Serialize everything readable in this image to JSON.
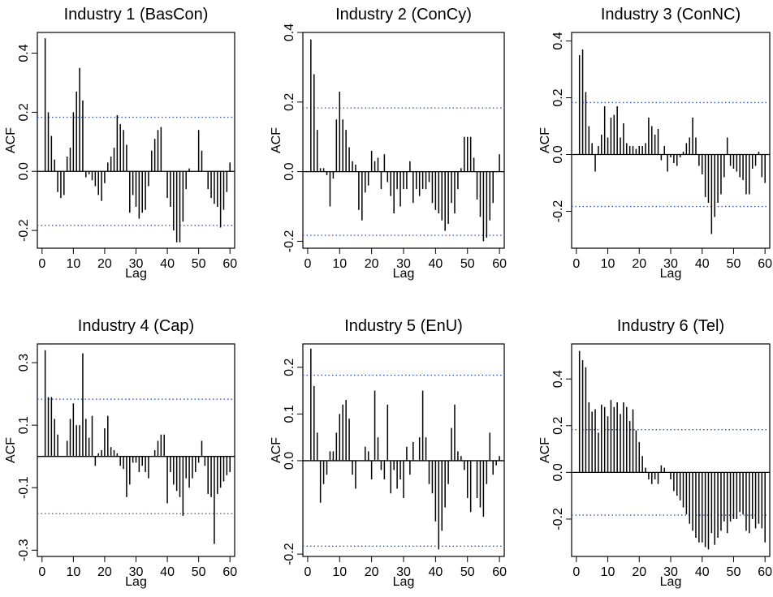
{
  "chart_data": [
    {
      "type": "bar",
      "title": "Industry 1 (BasCon)",
      "xlabel": "Lag",
      "ylabel": "ACF",
      "ylim": [
        -0.26,
        0.47
      ],
      "xlim": [
        -1.5,
        61.5
      ],
      "yticks": [
        -0.2,
        0.0,
        0.2,
        0.4
      ],
      "ytick_labels": [
        "-0.2",
        "0.0",
        "0.2",
        "0.4"
      ],
      "xticks": [
        0,
        10,
        20,
        30,
        40,
        50,
        60
      ],
      "xtick_labels": [
        "0",
        "10",
        "20",
        "30",
        "40",
        "50",
        "60"
      ],
      "ci": 0.183,
      "grid": false,
      "lags": [
        1,
        2,
        3,
        4,
        5,
        6,
        7,
        8,
        9,
        10,
        11,
        12,
        13,
        14,
        15,
        16,
        17,
        18,
        19,
        20,
        21,
        22,
        23,
        24,
        25,
        26,
        27,
        28,
        29,
        30,
        31,
        32,
        33,
        34,
        35,
        36,
        37,
        38,
        39,
        40,
        41,
        42,
        43,
        44,
        45,
        46,
        47,
        48,
        49,
        50,
        51,
        52,
        53,
        54,
        55,
        56,
        57,
        58,
        59,
        60
      ],
      "values": [
        0.45,
        0.2,
        0.12,
        0.04,
        -0.07,
        -0.09,
        -0.08,
        0.05,
        0.08,
        0.2,
        0.27,
        0.35,
        0.24,
        -0.02,
        -0.01,
        -0.03,
        -0.05,
        -0.08,
        -0.1,
        -0.04,
        0.03,
        0.05,
        0.08,
        0.19,
        0.16,
        0.14,
        0.09,
        -0.14,
        -0.08,
        -0.12,
        -0.16,
        -0.14,
        -0.13,
        -0.05,
        0.07,
        0.11,
        0.14,
        0.15,
        0.0,
        -0.09,
        -0.12,
        -0.2,
        -0.24,
        -0.24,
        -0.17,
        -0.06,
        0.01,
        0.0,
        0.0,
        0.14,
        0.07,
        0.0,
        -0.06,
        -0.09,
        -0.11,
        -0.12,
        -0.19,
        -0.13,
        -0.07,
        0.03
      ]
    },
    {
      "type": "bar",
      "title": "Industry 2 (ConCy)",
      "xlabel": "Lag",
      "ylabel": "ACF",
      "ylim": [
        -0.22,
        0.4
      ],
      "xlim": [
        -1.5,
        61.5
      ],
      "yticks": [
        -0.2,
        0.0,
        0.2,
        0.4
      ],
      "ytick_labels": [
        "-0.2",
        "0.0",
        "0.2",
        "0.4"
      ],
      "xticks": [
        0,
        10,
        20,
        30,
        40,
        50,
        60
      ],
      "xtick_labels": [
        "0",
        "10",
        "20",
        "30",
        "40",
        "50",
        "60"
      ],
      "ci": 0.183,
      "grid": false,
      "lags": [
        1,
        2,
        3,
        4,
        5,
        6,
        7,
        8,
        9,
        10,
        11,
        12,
        13,
        14,
        15,
        16,
        17,
        18,
        19,
        20,
        21,
        22,
        23,
        24,
        25,
        26,
        27,
        28,
        29,
        30,
        31,
        32,
        33,
        34,
        35,
        36,
        37,
        38,
        39,
        40,
        41,
        42,
        43,
        44,
        45,
        46,
        47,
        48,
        49,
        50,
        51,
        52,
        53,
        54,
        55,
        56,
        57,
        58,
        59,
        60
      ],
      "values": [
        0.38,
        0.28,
        0.12,
        0.01,
        0.01,
        -0.01,
        -0.1,
        -0.02,
        0.15,
        0.23,
        0.15,
        0.12,
        0.07,
        0.03,
        0.02,
        -0.11,
        -0.14,
        -0.06,
        -0.04,
        0.06,
        0.03,
        0.04,
        -0.05,
        0.05,
        -0.03,
        -0.07,
        -0.12,
        -0.05,
        -0.1,
        -0.05,
        -0.05,
        0.03,
        -0.09,
        -0.05,
        -0.07,
        -0.05,
        -0.05,
        -0.03,
        -0.09,
        -0.11,
        -0.12,
        -0.14,
        -0.17,
        -0.15,
        -0.09,
        -0.12,
        -0.05,
        0.01,
        0.1,
        0.1,
        0.1,
        0.04,
        -0.08,
        -0.13,
        -0.2,
        -0.19,
        -0.14,
        -0.09,
        0.0,
        0.05
      ]
    },
    {
      "type": "bar",
      "title": "Industry 3 (ConNC)",
      "xlabel": "Lag",
      "ylabel": "ACF",
      "ylim": [
        -0.33,
        0.43
      ],
      "xlim": [
        -1.5,
        61.5
      ],
      "yticks": [
        -0.2,
        0.0,
        0.2,
        0.4
      ],
      "ytick_labels": [
        "-0.2",
        "0.0",
        "0.2",
        "0.4"
      ],
      "xticks": [
        0,
        10,
        20,
        30,
        40,
        50,
        60
      ],
      "xtick_labels": [
        "0",
        "10",
        "20",
        "30",
        "40",
        "50",
        "60"
      ],
      "ci": 0.183,
      "grid": false,
      "lags": [
        1,
        2,
        3,
        4,
        5,
        6,
        7,
        8,
        9,
        10,
        11,
        12,
        13,
        14,
        15,
        16,
        17,
        18,
        19,
        20,
        21,
        22,
        23,
        24,
        25,
        26,
        27,
        28,
        29,
        30,
        31,
        32,
        33,
        34,
        35,
        36,
        37,
        38,
        39,
        40,
        41,
        42,
        43,
        44,
        45,
        46,
        47,
        48,
        49,
        50,
        51,
        52,
        53,
        54,
        55,
        56,
        57,
        58,
        59,
        60
      ],
      "values": [
        0.35,
        0.37,
        0.22,
        0.1,
        0.04,
        -0.06,
        0.03,
        0.07,
        0.17,
        0.06,
        0.13,
        0.14,
        0.17,
        0.06,
        0.11,
        0.04,
        0.03,
        0.03,
        0.02,
        0.03,
        0.03,
        0.04,
        0.13,
        0.1,
        0.07,
        0.09,
        -0.02,
        0.03,
        -0.06,
        -0.01,
        -0.03,
        -0.04,
        -0.01,
        0.01,
        0.04,
        0.06,
        0.13,
        0.06,
        -0.04,
        -0.07,
        -0.15,
        -0.17,
        -0.28,
        -0.22,
        -0.17,
        -0.14,
        -0.08,
        0.06,
        -0.04,
        -0.05,
        -0.06,
        -0.08,
        -0.09,
        -0.14,
        -0.14,
        -0.05,
        -0.04,
        0.01,
        -0.08,
        -0.1
      ]
    },
    {
      "type": "bar",
      "title": "Industry 4 (Cap)",
      "xlabel": "Lag",
      "ylabel": "ACF",
      "ylim": [
        -0.32,
        0.36
      ],
      "xlim": [
        -1.5,
        61.5
      ],
      "yticks": [
        -0.3,
        -0.1,
        0.1,
        0.3
      ],
      "ytick_labels": [
        "-0.3",
        "-0.1",
        "0.1",
        "0.3"
      ],
      "xticks": [
        0,
        10,
        20,
        30,
        40,
        50,
        60
      ],
      "xtick_labels": [
        "0",
        "10",
        "20",
        "30",
        "40",
        "50",
        "60"
      ],
      "ci": 0.183,
      "grid": false,
      "lags": [
        1,
        2,
        3,
        4,
        5,
        6,
        7,
        8,
        9,
        10,
        11,
        12,
        13,
        14,
        15,
        16,
        17,
        18,
        19,
        20,
        21,
        22,
        23,
        24,
        25,
        26,
        27,
        28,
        29,
        30,
        31,
        32,
        33,
        34,
        35,
        36,
        37,
        38,
        39,
        40,
        41,
        42,
        43,
        44,
        45,
        46,
        47,
        48,
        49,
        50,
        51,
        52,
        53,
        54,
        55,
        56,
        57,
        58,
        59,
        60
      ],
      "values": [
        0.34,
        0.19,
        0.19,
        0.12,
        0.07,
        0.0,
        0.0,
        0.05,
        0.12,
        0.17,
        0.1,
        0.1,
        0.33,
        0.12,
        0.06,
        0.13,
        -0.03,
        0.01,
        0.02,
        0.09,
        0.13,
        0.03,
        0.02,
        0.01,
        -0.03,
        -0.04,
        -0.13,
        -0.09,
        -0.02,
        -0.02,
        -0.05,
        -0.03,
        -0.05,
        -0.07,
        0.0,
        0.02,
        0.05,
        0.07,
        0.07,
        -0.15,
        -0.05,
        -0.09,
        -0.11,
        -0.13,
        -0.19,
        -0.07,
        -0.1,
        -0.07,
        -0.05,
        -0.02,
        0.05,
        -0.03,
        -0.12,
        -0.13,
        -0.28,
        -0.12,
        -0.1,
        -0.08,
        -0.06,
        -0.05
      ]
    },
    {
      "type": "bar",
      "title": "Industry 5 (EnU)",
      "xlabel": "Lag",
      "ylabel": "ACF",
      "ylim": [
        -0.205,
        0.25
      ],
      "xlim": [
        -1.5,
        61.5
      ],
      "yticks": [
        -0.2,
        0.0,
        0.1,
        0.2
      ],
      "ytick_labels": [
        "-0.2",
        "0.0",
        "0.1",
        "0.2"
      ],
      "xticks": [
        0,
        10,
        20,
        30,
        40,
        50,
        60
      ],
      "xtick_labels": [
        "0",
        "10",
        "20",
        "30",
        "40",
        "50",
        "60"
      ],
      "ci": 0.183,
      "grid": false,
      "lags": [
        1,
        2,
        3,
        4,
        5,
        6,
        7,
        8,
        9,
        10,
        11,
        12,
        13,
        14,
        15,
        16,
        17,
        18,
        19,
        20,
        21,
        22,
        23,
        24,
        25,
        26,
        27,
        28,
        29,
        30,
        31,
        32,
        33,
        34,
        35,
        36,
        37,
        38,
        39,
        40,
        41,
        42,
        43,
        44,
        45,
        46,
        47,
        48,
        49,
        50,
        51,
        52,
        53,
        54,
        55,
        56,
        57,
        58,
        59,
        60
      ],
      "values": [
        0.24,
        0.16,
        0.06,
        -0.09,
        -0.05,
        -0.03,
        0.02,
        0.02,
        0.06,
        0.1,
        0.12,
        0.13,
        0.09,
        -0.03,
        -0.06,
        0.0,
        0.0,
        0.03,
        0.02,
        -0.04,
        0.15,
        0.05,
        -0.02,
        -0.04,
        0.12,
        -0.07,
        -0.02,
        -0.06,
        -0.04,
        -0.08,
        0.03,
        -0.03,
        0.04,
        0.0,
        0.05,
        0.15,
        0.05,
        -0.05,
        -0.07,
        -0.13,
        -0.19,
        -0.15,
        -0.1,
        -0.05,
        0.07,
        0.12,
        0.02,
        0.01,
        -0.02,
        -0.08,
        -0.11,
        0.0,
        -0.08,
        -0.1,
        -0.12,
        -0.05,
        0.06,
        -0.03,
        -0.01,
        0.01
      ]
    },
    {
      "type": "bar",
      "title": "Industry 6 (Tel)",
      "xlabel": "Lag",
      "ylabel": "ACF",
      "ylim": [
        -0.36,
        0.55
      ],
      "xlim": [
        -1.5,
        61.5
      ],
      "yticks": [
        -0.2,
        0.0,
        0.2,
        0.4
      ],
      "ytick_labels": [
        "-0.2",
        "0.0",
        "0.2",
        "0.4"
      ],
      "xticks": [
        0,
        10,
        20,
        30,
        40,
        50,
        60
      ],
      "xtick_labels": [
        "0",
        "10",
        "20",
        "30",
        "40",
        "50",
        "60"
      ],
      "ci": 0.183,
      "grid": false,
      "lags": [
        1,
        2,
        3,
        4,
        5,
        6,
        7,
        8,
        9,
        10,
        11,
        12,
        13,
        14,
        15,
        16,
        17,
        18,
        19,
        20,
        21,
        22,
        23,
        24,
        25,
        26,
        27,
        28,
        29,
        30,
        31,
        32,
        33,
        34,
        35,
        36,
        37,
        38,
        39,
        40,
        41,
        42,
        43,
        44,
        45,
        46,
        47,
        48,
        49,
        50,
        51,
        52,
        53,
        54,
        55,
        56,
        57,
        58,
        59,
        60
      ],
      "values": [
        0.52,
        0.48,
        0.45,
        0.3,
        0.26,
        0.27,
        0.17,
        0.29,
        0.28,
        0.24,
        0.31,
        0.28,
        0.3,
        0.25,
        0.3,
        0.28,
        0.22,
        0.27,
        0.18,
        0.13,
        0.07,
        0.02,
        -0.03,
        -0.05,
        -0.03,
        -0.05,
        0.03,
        0.02,
        0.0,
        -0.03,
        -0.08,
        -0.1,
        -0.12,
        -0.15,
        -0.18,
        -0.22,
        -0.25,
        -0.28,
        -0.3,
        -0.3,
        -0.32,
        -0.33,
        -0.26,
        -0.31,
        -0.28,
        -0.25,
        -0.21,
        -0.26,
        -0.21,
        -0.2,
        -0.2,
        -0.17,
        -0.18,
        -0.25,
        -0.26,
        -0.2,
        -0.24,
        -0.22,
        -0.24,
        -0.3
      ]
    }
  ]
}
